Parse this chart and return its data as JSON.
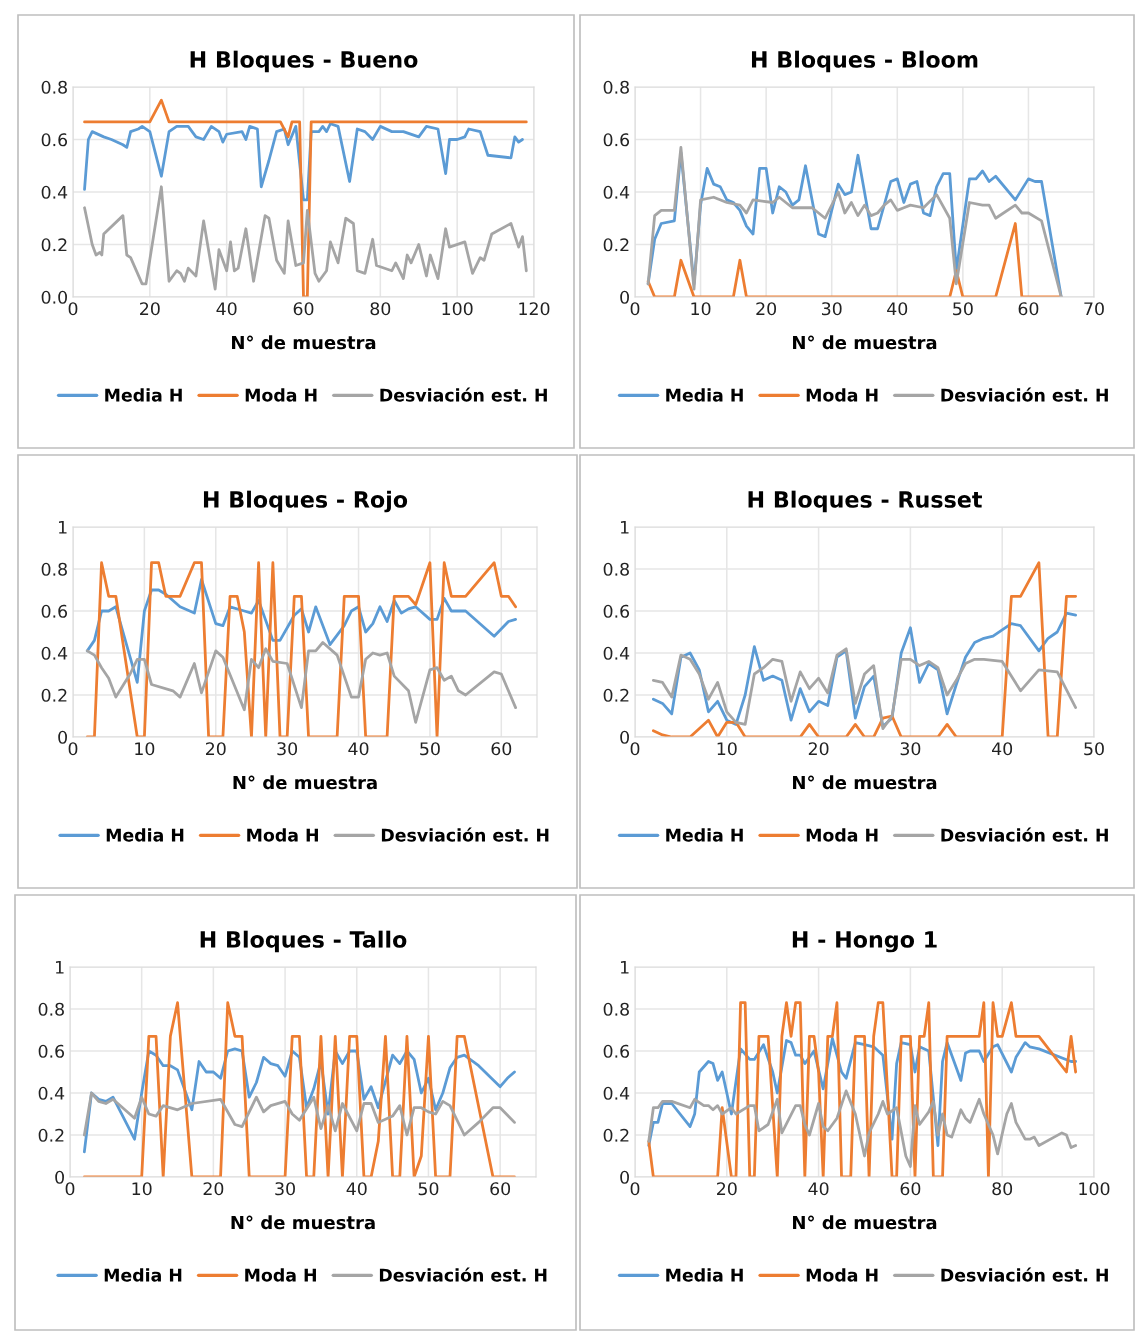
{
  "chart_data": [
    {
      "type": "line",
      "title": "H Bloques - Bueno",
      "xlabel": "N° de muestra",
      "xlim": [
        0,
        120
      ],
      "xticks": [
        0,
        20,
        40,
        60,
        80,
        100,
        120
      ],
      "ylim": [
        0,
        0.8
      ],
      "yticks": [
        {
          "value": 0,
          "label": "0.0"
        },
        0.2,
        0.4,
        0.6,
        0.8
      ],
      "grid": true,
      "legend": "bottom",
      "marker": "none",
      "series": [
        {
          "name": "Media H",
          "color": "#5b9bd5",
          "x": [
            3,
            4,
            5,
            8,
            10,
            13,
            14,
            15,
            17,
            18,
            20,
            23,
            25,
            27,
            30,
            32,
            34,
            36,
            38,
            39,
            40,
            44,
            45,
            46,
            48,
            49,
            51,
            53,
            55,
            56,
            58,
            60,
            61,
            62,
            64,
            65,
            66,
            67,
            69,
            72,
            74,
            76,
            78,
            80,
            83,
            86,
            90,
            92,
            95,
            97,
            98,
            100,
            102,
            103,
            106,
            108,
            114,
            115,
            116,
            117
          ],
          "values": [
            0.41,
            0.6,
            0.63,
            0.61,
            0.6,
            0.58,
            0.57,
            0.63,
            0.64,
            0.65,
            0.63,
            0.46,
            0.63,
            0.65,
            0.65,
            0.61,
            0.6,
            0.65,
            0.63,
            0.59,
            0.62,
            0.63,
            0.6,
            0.65,
            0.64,
            0.42,
            0.52,
            0.63,
            0.64,
            0.58,
            0.65,
            0.37,
            0.37,
            0.63,
            0.63,
            0.65,
            0.63,
            0.66,
            0.65,
            0.44,
            0.64,
            0.63,
            0.6,
            0.65,
            0.63,
            0.63,
            0.61,
            0.65,
            0.64,
            0.47,
            0.6,
            0.6,
            0.61,
            0.64,
            0.63,
            0.54,
            0.53,
            0.61,
            0.59,
            0.6
          ]
        },
        {
          "name": "Moda H",
          "color": "#ed7d31",
          "x": [
            3,
            20,
            23,
            25,
            54,
            56,
            57,
            59,
            60,
            61,
            62,
            118
          ],
          "values": [
            0.667,
            0.667,
            0.75,
            0.667,
            0.667,
            0.61,
            0.667,
            0.667,
            0,
            0,
            0.667,
            0.667
          ]
        },
        {
          "name": "Desviación est. H",
          "color": "#a5a5a5",
          "x": [
            3,
            5,
            6,
            7,
            7.5,
            8,
            13,
            14,
            15,
            18,
            19,
            23,
            25,
            27,
            28,
            29,
            30,
            32,
            34,
            37,
            38,
            40,
            41,
            42,
            43,
            45,
            47,
            50,
            51,
            53,
            55,
            56,
            58,
            60,
            61,
            63,
            64,
            66,
            67,
            69,
            71,
            73,
            74,
            76,
            78,
            79,
            83,
            84,
            86,
            87,
            88,
            90,
            92,
            93,
            95,
            97,
            98,
            102,
            104,
            106,
            107,
            109,
            114,
            116,
            117,
            118
          ],
          "values": [
            0.34,
            0.2,
            0.16,
            0.17,
            0.16,
            0.24,
            0.31,
            0.16,
            0.15,
            0.05,
            0.05,
            0.42,
            0.06,
            0.1,
            0.09,
            0.06,
            0.11,
            0.08,
            0.29,
            0.03,
            0.18,
            0.1,
            0.21,
            0.1,
            0.11,
            0.26,
            0.06,
            0.31,
            0.3,
            0.14,
            0.09,
            0.29,
            0.12,
            0.13,
            0.33,
            0.09,
            0.06,
            0.1,
            0.21,
            0.13,
            0.3,
            0.28,
            0.1,
            0.09,
            0.22,
            0.12,
            0.1,
            0.13,
            0.07,
            0.16,
            0.13,
            0.2,
            0.08,
            0.16,
            0.07,
            0.26,
            0.19,
            0.21,
            0.09,
            0.15,
            0.14,
            0.24,
            0.28,
            0.19,
            0.23,
            0.1
          ]
        }
      ]
    },
    {
      "type": "line",
      "title": "H Bloques - Bloom",
      "xlabel": "N° de muestra",
      "xlim": [
        0,
        70
      ],
      "xticks": [
        0,
        10,
        20,
        30,
        40,
        50,
        60,
        70
      ],
      "ylim": [
        0,
        0.8
      ],
      "yticks": [
        0,
        0.2,
        0.4,
        0.6,
        0.8
      ],
      "grid": true,
      "legend": "bottom",
      "marker": "none",
      "series": [
        {
          "name": "Media H",
          "color": "#5b9bd5",
          "x": [
            2,
            3,
            4,
            6,
            7,
            8,
            9,
            10,
            11,
            12,
            13,
            14,
            15,
            16,
            17,
            18,
            19,
            20,
            21,
            22,
            23,
            24,
            25,
            26,
            28,
            29,
            31,
            32,
            33,
            34,
            36,
            37,
            39,
            40,
            41,
            42,
            43,
            44,
            45,
            46,
            47,
            48,
            49,
            51,
            52,
            53,
            54,
            55,
            58,
            60,
            61,
            62,
            65
          ],
          "values": [
            0.05,
            0.22,
            0.28,
            0.29,
            0.55,
            0.3,
            0.05,
            0.35,
            0.49,
            0.43,
            0.42,
            0.37,
            0.36,
            0.33,
            0.27,
            0.24,
            0.49,
            0.49,
            0.32,
            0.42,
            0.4,
            0.35,
            0.37,
            0.5,
            0.24,
            0.23,
            0.43,
            0.39,
            0.4,
            0.54,
            0.26,
            0.26,
            0.44,
            0.45,
            0.36,
            0.43,
            0.44,
            0.32,
            0.31,
            0.42,
            0.47,
            0.47,
            0.1,
            0.45,
            0.45,
            0.48,
            0.44,
            0.46,
            0.37,
            0.45,
            0.44,
            0.44,
            0
          ]
        },
        {
          "name": "Moda H",
          "color": "#ed7d31",
          "x": [
            2,
            3,
            6,
            7,
            9,
            15,
            16,
            17,
            48,
            49,
            50,
            55,
            58,
            59,
            65
          ],
          "values": [
            0.06,
            0,
            0,
            0.14,
            0,
            0,
            0.14,
            0,
            0,
            0.1,
            0,
            0,
            0.28,
            0,
            0
          ]
        },
        {
          "name": "Desviación est. H",
          "color": "#a5a5a5",
          "x": [
            2,
            3,
            4,
            6,
            7,
            9,
            10,
            12,
            14,
            16,
            17,
            18,
            21,
            22,
            24,
            25,
            27,
            29,
            31,
            32,
            33,
            34,
            35,
            36,
            37,
            38,
            39,
            40,
            41,
            42,
            44,
            46,
            48,
            49,
            51,
            53,
            54,
            55,
            58,
            59,
            60,
            62,
            65
          ],
          "values": [
            0.05,
            0.31,
            0.33,
            0.33,
            0.57,
            0.03,
            0.37,
            0.38,
            0.36,
            0.35,
            0.32,
            0.37,
            0.36,
            0.38,
            0.34,
            0.34,
            0.34,
            0.3,
            0.4,
            0.32,
            0.36,
            0.31,
            0.35,
            0.31,
            0.32,
            0.35,
            0.37,
            0.33,
            0.34,
            0.35,
            0.34,
            0.39,
            0.3,
            0.05,
            0.36,
            0.35,
            0.35,
            0.3,
            0.35,
            0.32,
            0.32,
            0.29,
            0
          ]
        }
      ]
    },
    {
      "type": "line",
      "title": "H Bloques - Rojo",
      "xlabel": "N° de muestra",
      "xlim": [
        0,
        65
      ],
      "xticks": [
        0,
        10,
        20,
        30,
        40,
        50,
        60
      ],
      "ylim": [
        0,
        1
      ],
      "yticks": [
        0,
        0.2,
        0.4,
        0.6,
        0.8,
        1
      ],
      "grid": true,
      "legend": "bottom",
      "marker": "none",
      "series": [
        {
          "name": "Media H",
          "color": "#5b9bd5",
          "x": [
            2,
            3,
            4,
            5,
            6,
            9,
            10,
            11,
            12,
            13,
            15,
            17,
            18,
            20,
            21,
            22,
            24,
            25,
            26,
            28,
            29,
            31,
            32,
            33,
            34,
            36,
            38,
            39,
            40,
            41,
            42,
            43,
            44,
            45,
            46,
            47,
            48,
            50,
            51,
            52,
            53,
            55,
            59,
            61,
            62
          ],
          "values": [
            0.41,
            0.46,
            0.6,
            0.6,
            0.62,
            0.26,
            0.6,
            0.7,
            0.7,
            0.68,
            0.62,
            0.59,
            0.75,
            0.54,
            0.53,
            0.62,
            0.6,
            0.59,
            0.65,
            0.46,
            0.46,
            0.58,
            0.61,
            0.5,
            0.62,
            0.44,
            0.53,
            0.6,
            0.62,
            0.5,
            0.54,
            0.62,
            0.55,
            0.65,
            0.59,
            0.61,
            0.62,
            0.56,
            0.56,
            0.66,
            0.6,
            0.6,
            0.48,
            0.55,
            0.56
          ]
        },
        {
          "name": "Moda H",
          "color": "#ed7d31",
          "x": [
            2,
            3,
            4,
            5,
            6,
            9,
            10,
            11,
            12,
            13,
            15,
            17,
            18,
            19,
            21,
            22,
            23,
            24,
            25,
            26,
            27,
            28,
            29,
            30,
            31,
            32,
            33,
            37,
            38,
            40,
            41,
            44,
            45,
            47,
            48,
            50,
            51,
            52,
            53,
            55,
            59,
            60,
            61,
            62
          ],
          "values": [
            0,
            0,
            0.83,
            0.67,
            0.67,
            0,
            0,
            0.83,
            0.83,
            0.67,
            0.67,
            0.83,
            0.83,
            0,
            0,
            0.67,
            0.67,
            0.5,
            0,
            0.83,
            0,
            0.83,
            0,
            0,
            0.67,
            0.67,
            0,
            0,
            0.67,
            0.67,
            0,
            0,
            0.67,
            0.67,
            0.63,
            0.83,
            0,
            0.83,
            0.67,
            0.67,
            0.83,
            0.67,
            0.67,
            0.62
          ]
        },
        {
          "name": "Desviación est. H",
          "color": "#a5a5a5",
          "x": [
            2,
            3,
            4,
            5,
            6,
            8,
            9,
            10,
            11,
            14,
            15,
            17,
            18,
            20,
            21,
            24,
            25,
            26,
            27,
            28,
            30,
            32,
            33,
            34,
            35,
            37,
            39,
            40,
            41,
            42,
            43,
            44,
            45,
            47,
            48,
            50,
            51,
            52,
            53,
            54,
            55,
            59,
            60,
            62
          ],
          "values": [
            0.41,
            0.39,
            0.33,
            0.28,
            0.19,
            0.3,
            0.37,
            0.37,
            0.25,
            0.22,
            0.19,
            0.35,
            0.21,
            0.41,
            0.38,
            0.13,
            0.37,
            0.33,
            0.42,
            0.36,
            0.35,
            0.14,
            0.41,
            0.41,
            0.45,
            0.39,
            0.19,
            0.19,
            0.37,
            0.4,
            0.39,
            0.4,
            0.29,
            0.22,
            0.07,
            0.32,
            0.33,
            0.27,
            0.29,
            0.22,
            0.2,
            0.31,
            0.3,
            0.14
          ]
        }
      ]
    },
    {
      "type": "line",
      "title": "H Bloques - Russet",
      "xlabel": "N° de muestra",
      "xlim": [
        0,
        50
      ],
      "xticks": [
        0,
        10,
        20,
        30,
        40,
        50
      ],
      "ylim": [
        0,
        1
      ],
      "yticks": [
        0,
        0.2,
        0.4,
        0.6,
        0.8,
        1
      ],
      "grid": true,
      "legend": "bottom",
      "marker": "none",
      "series": [
        {
          "name": "Media H",
          "color": "#5b9bd5",
          "x": [
            2,
            3,
            4,
            5,
            6,
            7,
            8,
            9,
            10,
            11,
            12,
            13,
            14,
            15,
            16,
            17,
            18,
            19,
            20,
            21,
            22,
            23,
            24,
            25,
            26,
            27,
            28,
            29,
            30,
            31,
            32,
            33,
            34,
            35,
            36,
            37,
            38,
            39,
            41,
            42,
            44,
            45,
            46,
            47,
            48
          ],
          "values": [
            0.18,
            0.16,
            0.11,
            0.38,
            0.4,
            0.32,
            0.12,
            0.17,
            0.08,
            0.06,
            0.2,
            0.43,
            0.27,
            0.29,
            0.27,
            0.08,
            0.23,
            0.12,
            0.17,
            0.15,
            0.38,
            0.41,
            0.09,
            0.24,
            0.29,
            0.05,
            0.09,
            0.4,
            0.52,
            0.26,
            0.35,
            0.32,
            0.11,
            0.25,
            0.38,
            0.45,
            0.47,
            0.48,
            0.54,
            0.53,
            0.41,
            0.47,
            0.5,
            0.59,
            0.58
          ]
        },
        {
          "name": "Moda H",
          "color": "#ed7d31",
          "x": [
            2,
            3,
            4,
            6,
            8,
            9,
            10,
            11,
            12,
            18,
            19,
            20,
            23,
            24,
            25,
            26,
            27,
            28,
            29,
            33,
            34,
            35,
            40,
            41,
            42,
            44,
            45,
            46,
            47,
            48
          ],
          "values": [
            0.03,
            0.01,
            0,
            0,
            0.08,
            0,
            0.07,
            0.07,
            0,
            0,
            0.06,
            0,
            0,
            0.06,
            0,
            0,
            0.09,
            0.1,
            0,
            0,
            0.06,
            0,
            0,
            0.67,
            0.67,
            0.83,
            0,
            0,
            0.67,
            0.67
          ]
        },
        {
          "name": "Desviación est. H",
          "color": "#a5a5a5",
          "x": [
            2,
            3,
            4,
            5,
            6,
            7,
            8,
            9,
            10,
            11,
            12,
            13,
            14,
            15,
            16,
            17,
            18,
            19,
            20,
            21,
            22,
            23,
            24,
            25,
            26,
            27,
            28,
            29,
            30,
            31,
            32,
            33,
            34,
            35,
            36,
            37,
            38,
            40,
            42,
            44,
            46,
            48
          ],
          "values": [
            0.27,
            0.26,
            0.19,
            0.39,
            0.37,
            0.3,
            0.18,
            0.26,
            0.12,
            0.07,
            0.06,
            0.3,
            0.33,
            0.37,
            0.36,
            0.17,
            0.31,
            0.23,
            0.28,
            0.21,
            0.39,
            0.42,
            0.16,
            0.3,
            0.34,
            0.04,
            0.1,
            0.37,
            0.37,
            0.34,
            0.36,
            0.33,
            0.2,
            0.27,
            0.35,
            0.37,
            0.37,
            0.36,
            0.22,
            0.32,
            0.31,
            0.14
          ]
        }
      ]
    },
    {
      "type": "line",
      "title": "H Bloques - Tallo",
      "xlabel": "N° de muestra",
      "xlim": [
        0,
        65
      ],
      "xticks": [
        0,
        10,
        20,
        30,
        40,
        50,
        60
      ],
      "ylim": [
        0,
        1
      ],
      "yticks": [
        0,
        0.2,
        0.4,
        0.6,
        0.8,
        1
      ],
      "grid": true,
      "legend": "bottom",
      "marker": "none",
      "series": [
        {
          "name": "Media H",
          "color": "#5b9bd5",
          "x": [
            2,
            3,
            4,
            5,
            6,
            9,
            10,
            11,
            12,
            13,
            14,
            15,
            17,
            18,
            19,
            20,
            21,
            22,
            23,
            24,
            25,
            26,
            27,
            28,
            29,
            30,
            31,
            32,
            33,
            34,
            35,
            36,
            37,
            38,
            39,
            40,
            41,
            42,
            43,
            45,
            46,
            47,
            48,
            49,
            50,
            51,
            52,
            53,
            54,
            55,
            57,
            60,
            61,
            62
          ],
          "values": [
            0.12,
            0.4,
            0.37,
            0.36,
            0.38,
            0.18,
            0.4,
            0.6,
            0.58,
            0.53,
            0.53,
            0.51,
            0.32,
            0.55,
            0.5,
            0.5,
            0.47,
            0.6,
            0.61,
            0.6,
            0.38,
            0.45,
            0.57,
            0.54,
            0.53,
            0.48,
            0.6,
            0.57,
            0.33,
            0.42,
            0.55,
            0.3,
            0.6,
            0.54,
            0.6,
            0.6,
            0.37,
            0.43,
            0.33,
            0.58,
            0.54,
            0.6,
            0.56,
            0.4,
            0.47,
            0.32,
            0.4,
            0.52,
            0.57,
            0.58,
            0.53,
            0.43,
            0.47,
            0.5
          ]
        },
        {
          "name": "Moda H",
          "color": "#ed7d31",
          "x": [
            2,
            10,
            11,
            12,
            13,
            14,
            15,
            17,
            21,
            22,
            23,
            24,
            25,
            30,
            31,
            32,
            33,
            34,
            35,
            36,
            37,
            38,
            39,
            40,
            41,
            42,
            43,
            44,
            45,
            46,
            47,
            48,
            49,
            50,
            51,
            53,
            54,
            55,
            59,
            62
          ],
          "values": [
            0,
            0,
            0.67,
            0.67,
            0,
            0.67,
            0.83,
            0,
            0,
            0.83,
            0.67,
            0.67,
            0,
            0,
            0.67,
            0.67,
            0,
            0,
            0.67,
            0,
            0.67,
            0,
            0.67,
            0.67,
            0,
            0,
            0.17,
            0.67,
            0,
            0,
            0.67,
            0,
            0.1,
            0.67,
            0,
            0,
            0.67,
            0.67,
            0,
            0
          ]
        },
        {
          "name": "Desviación est. H",
          "color": "#a5a5a5",
          "x": [
            2,
            3,
            4,
            5,
            6,
            9,
            10,
            11,
            12,
            13,
            15,
            17,
            21,
            23,
            24,
            26,
            27,
            28,
            30,
            31,
            32,
            34,
            35,
            36,
            37,
            38,
            40,
            41,
            42,
            43,
            45,
            46,
            47,
            48,
            49,
            50,
            51,
            52,
            53,
            55,
            57,
            59,
            60,
            62
          ],
          "values": [
            0.2,
            0.4,
            0.36,
            0.35,
            0.37,
            0.28,
            0.38,
            0.3,
            0.29,
            0.34,
            0.32,
            0.35,
            0.37,
            0.25,
            0.24,
            0.38,
            0.31,
            0.34,
            0.36,
            0.3,
            0.27,
            0.38,
            0.23,
            0.34,
            0.22,
            0.35,
            0.22,
            0.35,
            0.35,
            0.26,
            0.29,
            0.34,
            0.2,
            0.33,
            0.33,
            0.31,
            0.3,
            0.36,
            0.34,
            0.2,
            0.26,
            0.33,
            0.33,
            0.26
          ]
        }
      ]
    },
    {
      "type": "line",
      "title": "H - Hongo 1",
      "xlabel": "N° de muestra",
      "xlim": [
        0,
        100
      ],
      "xticks": [
        0,
        20,
        40,
        60,
        80,
        100
      ],
      "ylim": [
        0,
        1
      ],
      "yticks": [
        0,
        0.2,
        0.4,
        0.6,
        0.8,
        1
      ],
      "grid": true,
      "legend": "bottom",
      "marker": "none",
      "series": [
        {
          "name": "Media H",
          "color": "#5b9bd5",
          "x": [
            3,
            4,
            5,
            6,
            8,
            12,
            13,
            14,
            16,
            17,
            18,
            19,
            21,
            23,
            25,
            26,
            28,
            30,
            31,
            33,
            34,
            35,
            36,
            37,
            39,
            41,
            43,
            45,
            46,
            48,
            50,
            52,
            54,
            56,
            57,
            58,
            60,
            61,
            62,
            64,
            66,
            67,
            68,
            70,
            71,
            72,
            73,
            75,
            76,
            78,
            79,
            82,
            83,
            85,
            86,
            88,
            95,
            96
          ],
          "values": [
            0.15,
            0.26,
            0.26,
            0.35,
            0.35,
            0.24,
            0.3,
            0.5,
            0.55,
            0.54,
            0.46,
            0.5,
            0.3,
            0.61,
            0.56,
            0.56,
            0.63,
            0.5,
            0.4,
            0.65,
            0.64,
            0.58,
            0.58,
            0.54,
            0.6,
            0.42,
            0.66,
            0.5,
            0.47,
            0.64,
            0.63,
            0.62,
            0.58,
            0.18,
            0.54,
            0.64,
            0.63,
            0.5,
            0.62,
            0.6,
            0.15,
            0.55,
            0.64,
            0.52,
            0.46,
            0.59,
            0.6,
            0.6,
            0.55,
            0.62,
            0.63,
            0.5,
            0.57,
            0.64,
            0.62,
            0.61,
            0.55,
            0.55
          ]
        },
        {
          "name": "Moda H",
          "color": "#ed7d31",
          "x": [
            3,
            4,
            18,
            19,
            21,
            22,
            23,
            24,
            25,
            26,
            27,
            29,
            31,
            32,
            33,
            34,
            35,
            36,
            37,
            38,
            39,
            40,
            41,
            42,
            43,
            44,
            45,
            47,
            48,
            50,
            51,
            52,
            53,
            54,
            56,
            57,
            58,
            60,
            61,
            62,
            63,
            64,
            65,
            67,
            68,
            75,
            76,
            77,
            78,
            79,
            80,
            82,
            83,
            88,
            94,
            95,
            96
          ],
          "values": [
            0.17,
            0,
            0,
            0.33,
            0,
            0,
            0.83,
            0.83,
            0,
            0,
            0.67,
            0.67,
            0,
            0.67,
            0.83,
            0.67,
            0.83,
            0.83,
            0,
            0.67,
            0.67,
            0.5,
            0,
            0.67,
            0.67,
            0.83,
            0,
            0,
            0.67,
            0.67,
            0,
            0.67,
            0.83,
            0.83,
            0,
            0,
            0.67,
            0.67,
            0,
            0.67,
            0.67,
            0.83,
            0,
            0,
            0.67,
            0.67,
            0.83,
            0,
            0.83,
            0.67,
            0.67,
            0.83,
            0.67,
            0.67,
            0.5,
            0.67,
            0.5
          ]
        },
        {
          "name": "Desviación est. H",
          "color": "#a5a5a5",
          "x": [
            3,
            4,
            5,
            6,
            8,
            12,
            13,
            15,
            16,
            17,
            18,
            19,
            21,
            22,
            25,
            26,
            27,
            29,
            31,
            32,
            35,
            36,
            37,
            38,
            40,
            41,
            42,
            44,
            46,
            48,
            50,
            51,
            53,
            54,
            55,
            57,
            59,
            60,
            61,
            62,
            64,
            65,
            66,
            67,
            68,
            69,
            71,
            72,
            73,
            75,
            76,
            78,
            79,
            81,
            82,
            83,
            85,
            86,
            87,
            88,
            93,
            94,
            95,
            96
          ],
          "values": [
            0.17,
            0.33,
            0.33,
            0.36,
            0.36,
            0.33,
            0.37,
            0.34,
            0.34,
            0.32,
            0.34,
            0.3,
            0.33,
            0.3,
            0.34,
            0.34,
            0.22,
            0.25,
            0.37,
            0.21,
            0.34,
            0.34,
            0.25,
            0.2,
            0.35,
            0.24,
            0.22,
            0.28,
            0.41,
            0.3,
            0.1,
            0.21,
            0.3,
            0.36,
            0.3,
            0.33,
            0.1,
            0.05,
            0.34,
            0.25,
            0.31,
            0.36,
            0.2,
            0.3,
            0.2,
            0.19,
            0.32,
            0.28,
            0.26,
            0.37,
            0.3,
            0.2,
            0.11,
            0.3,
            0.35,
            0.26,
            0.18,
            0.18,
            0.19,
            0.15,
            0.21,
            0.2,
            0.14,
            0.15
          ]
        }
      ]
    }
  ]
}
